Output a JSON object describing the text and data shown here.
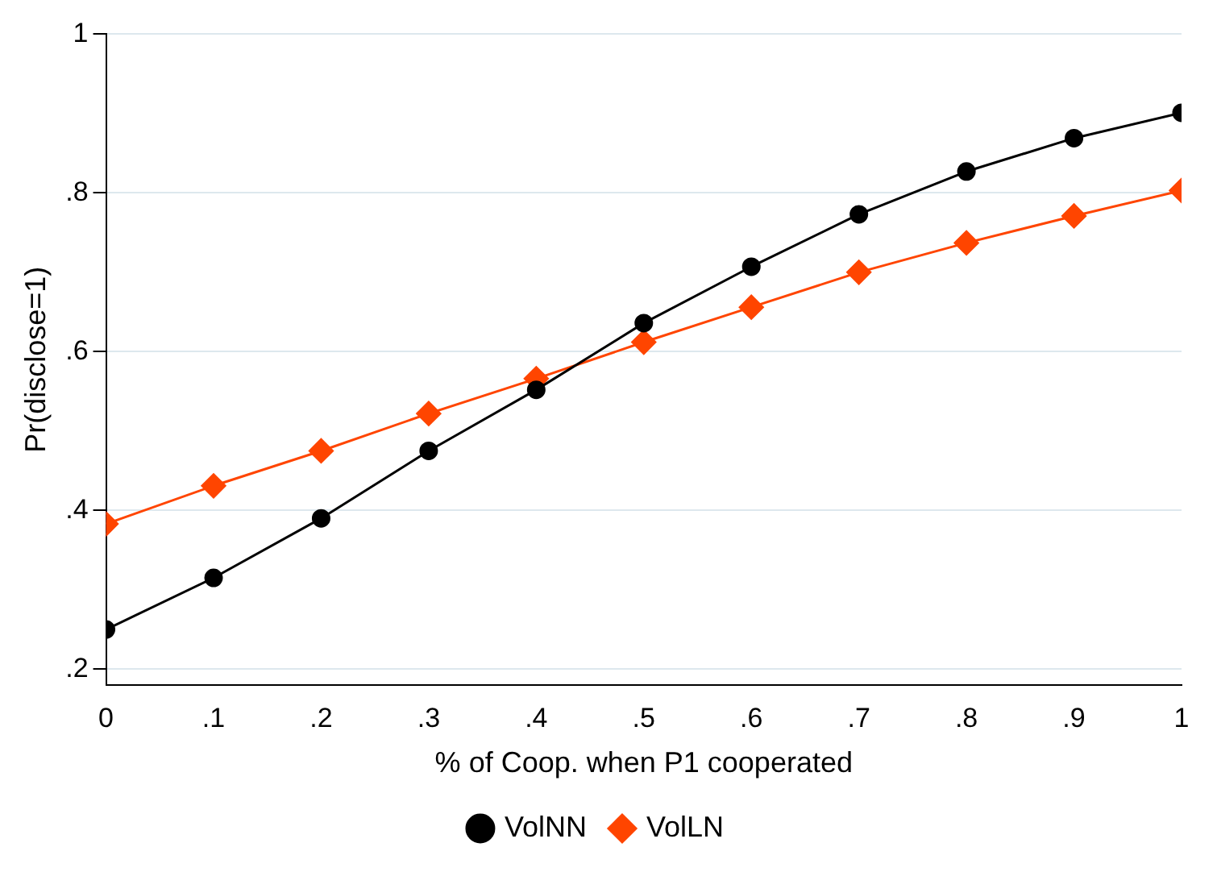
{
  "chart_data": {
    "type": "line",
    "xlabel": "% of Coop. when P1 cooperated",
    "ylabel": "Pr(disclose=1)",
    "x": [
      0,
      0.1,
      0.2,
      0.3,
      0.4,
      0.5,
      0.6,
      0.7,
      0.8,
      0.9,
      1
    ],
    "series": [
      {
        "name": "VolNN",
        "color": "#000000",
        "marker": "circle",
        "values": [
          0.25,
          0.315,
          0.39,
          0.475,
          0.552,
          0.636,
          0.707,
          0.773,
          0.827,
          0.869,
          0.901
        ]
      },
      {
        "name": "VolLN",
        "color": "#ff4500",
        "marker": "diamond",
        "values": [
          0.383,
          0.431,
          0.475,
          0.522,
          0.566,
          0.612,
          0.656,
          0.7,
          0.737,
          0.771,
          0.803
        ]
      }
    ],
    "xlim": [
      0,
      1
    ],
    "ylim": [
      0.18,
      1
    ],
    "xticks": [
      0,
      {
        "value": 0.1,
        "label": ".1"
      },
      {
        "value": 0.2,
        "label": ".2"
      },
      {
        "value": 0.3,
        "label": ".3"
      },
      {
        "value": 0.4,
        "label": ".4"
      },
      {
        "value": 0.5,
        "label": ".5"
      },
      {
        "value": 0.6,
        "label": ".6"
      },
      {
        "value": 0.7,
        "label": ".7"
      },
      {
        "value": 0.8,
        "label": ".8"
      },
      {
        "value": 0.9,
        "label": ".9"
      },
      1
    ],
    "yticks": [
      {
        "value": 0.2,
        "label": ".2"
      },
      {
        "value": 0.4,
        "label": ".4"
      },
      {
        "value": 0.6,
        "label": ".6"
      },
      {
        "value": 0.8,
        "label": ".8"
      },
      1
    ],
    "grid": "y",
    "legend": "bottom"
  }
}
